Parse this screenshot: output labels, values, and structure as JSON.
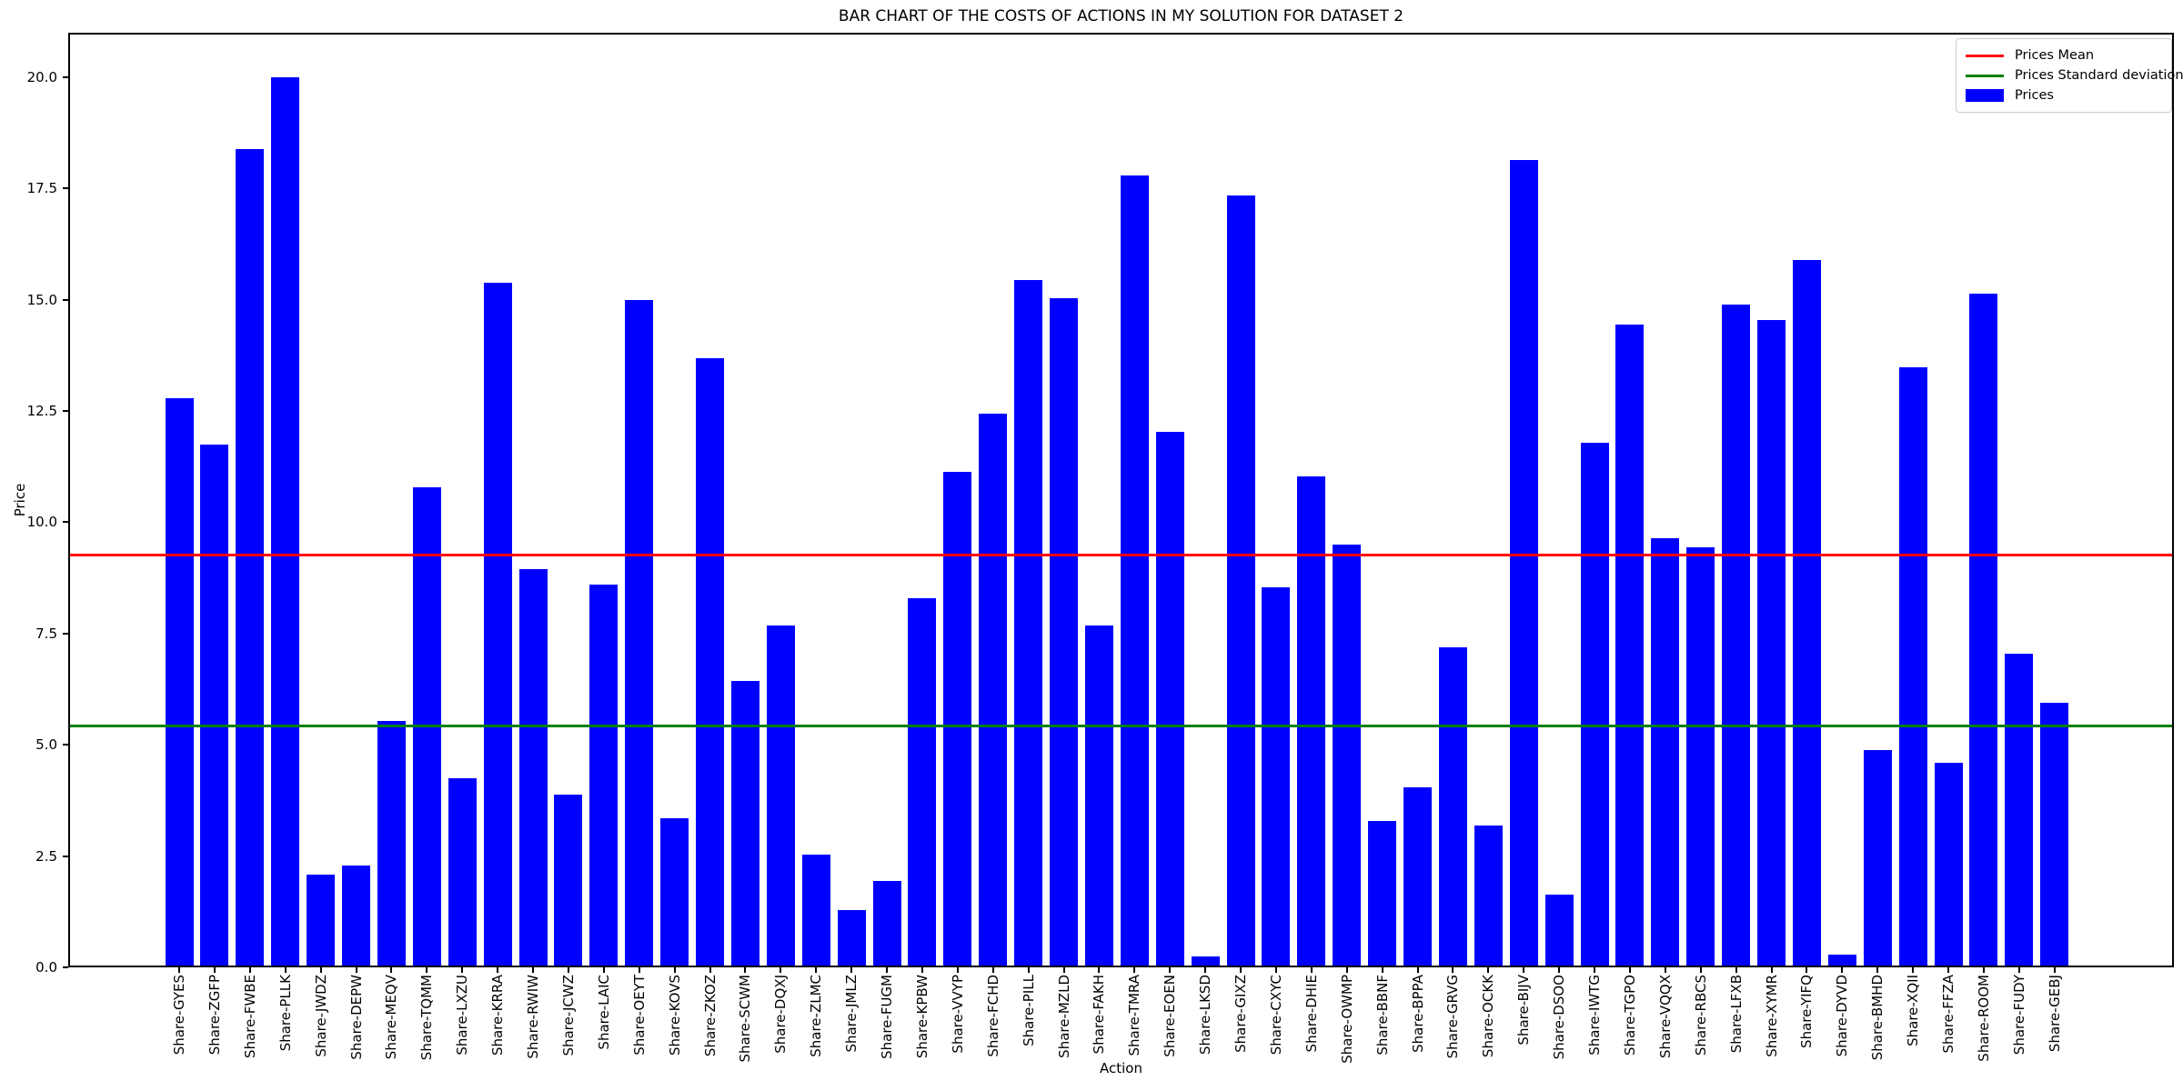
{
  "chart_data": {
    "type": "bar",
    "title": "BAR CHART OF THE COSTS OF ACTIONS IN MY SOLUTION FOR DATASET 2",
    "xlabel": "Action",
    "ylabel": "Price",
    "categories": [
      "Share-GYES",
      "Share-ZGFP",
      "Share-FWBE",
      "Share-PLLK",
      "Share-JWDZ",
      "Share-DEPW",
      "Share-MEQV",
      "Share-TQMM",
      "Share-LXZU",
      "Share-KRRA",
      "Share-RWIW",
      "Share-JCWZ",
      "Share-LAIC",
      "Share-OEYT",
      "Share-KOVS",
      "Share-ZKOZ",
      "Share-SCWM",
      "Share-DQXJ",
      "Share-ZLMC",
      "Share-JMLZ",
      "Share-FUGM",
      "Share-KPBW",
      "Share-VVYP",
      "Share-FCHD",
      "Share-PILL",
      "Share-MZLD",
      "Share-FAKH",
      "Share-TMRA",
      "Share-EOEN",
      "Share-LKSD",
      "Share-GIXZ",
      "Share-CXYC",
      "Share-DHIE",
      "Share-OWMP",
      "Share-BBNF",
      "Share-BPPA",
      "Share-GRVG",
      "Share-OCKK",
      "Share-BIJV",
      "Share-DSOO",
      "Share-IWTG",
      "Share-TGPO",
      "Share-VQQX",
      "Share-RBCS",
      "Share-LFXB",
      "Share-XYMR",
      "Share-YIFQ",
      "Share-DYVD",
      "Share-BMHD",
      "Share-XQII",
      "Share-FFZA",
      "Share-ROOM",
      "Share-FUDY",
      "Share-GEBJ"
    ],
    "values": [
      12.75,
      11.7,
      18.35,
      19.95,
      2.05,
      2.25,
      5.5,
      10.75,
      4.2,
      15.35,
      8.9,
      3.85,
      8.55,
      14.95,
      3.3,
      13.65,
      6.4,
      7.65,
      2.5,
      1.25,
      1.9,
      8.25,
      11.1,
      12.4,
      15.4,
      15.0,
      7.65,
      17.75,
      12.0,
      0.2,
      17.3,
      8.5,
      11.0,
      9.45,
      3.25,
      4.0,
      7.15,
      3.15,
      18.1,
      1.6,
      11.75,
      14.4,
      9.6,
      9.4,
      14.85,
      14.5,
      15.85,
      0.25,
      4.85,
      13.45,
      4.55,
      15.1,
      7.0,
      5.9
    ],
    "bar_color": "#0000ff",
    "ylim": [
      0,
      21.0
    ],
    "yticks": [
      0.0,
      2.5,
      5.0,
      7.5,
      10.0,
      12.5,
      15.0,
      17.5,
      20.0
    ],
    "ytick_labels": [
      "0.0",
      "2.5",
      "5.0",
      "7.5",
      "10.0",
      "12.5",
      "15.0",
      "17.5",
      "20.0"
    ],
    "grid": false,
    "reference_lines": [
      {
        "name": "mean",
        "label": "Prices Mean",
        "value": 9.27,
        "color": "#ff0000"
      },
      {
        "name": "std",
        "label": "Prices Standard deviation",
        "value": 5.43,
        "color": "#008000"
      }
    ],
    "legend": {
      "position": "upper right",
      "entries": [
        {
          "label": "Prices Mean",
          "type": "line",
          "color": "#ff0000"
        },
        {
          "label": "Prices Standard deviation",
          "type": "line",
          "color": "#008000"
        },
        {
          "label": "Prices",
          "type": "patch",
          "color": "#0000ff"
        }
      ]
    },
    "text_color": "#000000",
    "background_color": "#ffffff"
  }
}
